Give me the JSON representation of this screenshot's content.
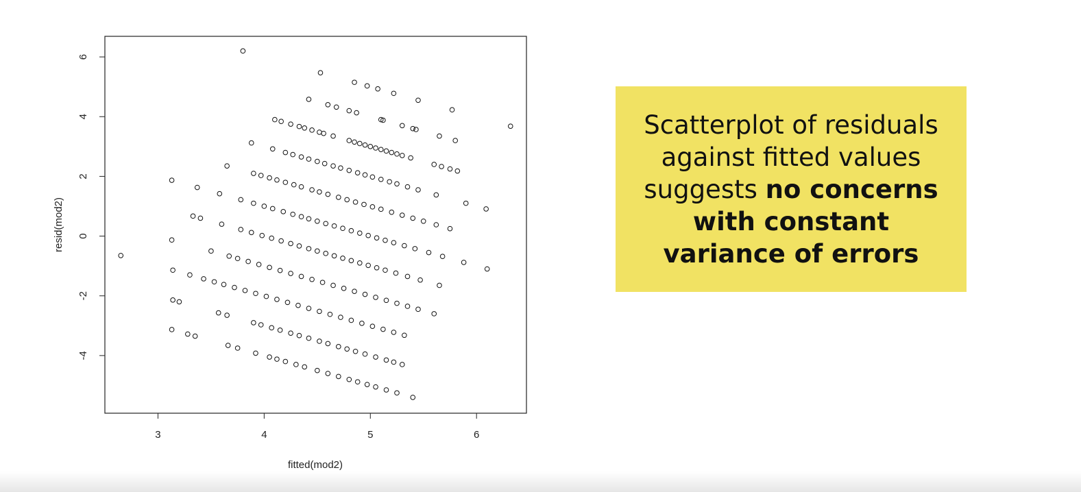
{
  "chart_data": {
    "type": "scatter",
    "xlabel": "fitted(mod2)",
    "ylabel": "resid(mod2)",
    "xlim": [
      2.5,
      6.47
    ],
    "ylim": [
      -5.93,
      6.69
    ],
    "xticks": [
      3,
      4,
      5,
      6
    ],
    "yticks": [
      -4,
      -2,
      0,
      2,
      4,
      6
    ],
    "color": "#111111",
    "x": [
      3.8,
      4.53,
      4.85,
      4.97,
      5.07,
      5.22,
      5.45,
      5.77,
      6.32,
      4.42,
      4.6,
      4.68,
      4.8,
      4.87,
      5.1,
      5.12,
      5.3,
      5.4,
      5.43,
      5.65,
      5.8,
      4.1,
      4.16,
      4.25,
      4.33,
      4.38,
      4.45,
      4.52,
      4.56,
      4.65,
      4.8,
      4.85,
      4.9,
      4.95,
      5.0,
      5.05,
      5.1,
      5.15,
      5.2,
      5.25,
      5.3,
      5.38,
      5.6,
      5.67,
      5.75,
      5.82,
      3.88,
      4.08,
      4.2,
      4.27,
      4.35,
      4.42,
      4.5,
      4.57,
      4.65,
      4.72,
      4.8,
      4.88,
      4.95,
      5.02,
      5.1,
      5.18,
      5.25,
      5.35,
      5.45,
      5.62,
      5.9,
      6.09,
      3.65,
      3.9,
      3.97,
      4.05,
      4.12,
      4.2,
      4.28,
      4.35,
      4.45,
      4.52,
      4.6,
      4.7,
      4.78,
      4.86,
      4.94,
      5.02,
      5.1,
      5.2,
      5.3,
      5.4,
      5.5,
      5.62,
      5.75,
      3.13,
      3.37,
      3.58,
      3.78,
      3.9,
      4.0,
      4.08,
      4.18,
      4.27,
      4.35,
      4.42,
      4.5,
      4.58,
      4.66,
      4.74,
      4.82,
      4.9,
      4.98,
      5.06,
      5.14,
      5.22,
      5.32,
      5.42,
      5.55,
      5.68,
      5.88,
      6.1,
      3.33,
      3.4,
      3.6,
      3.78,
      3.88,
      3.98,
      4.07,
      4.16,
      4.25,
      4.33,
      4.42,
      4.5,
      4.58,
      4.66,
      4.74,
      4.82,
      4.9,
      4.98,
      5.06,
      5.14,
      5.24,
      5.35,
      5.47,
      5.65,
      3.13,
      3.5,
      3.67,
      3.75,
      3.85,
      3.95,
      4.05,
      4.15,
      4.25,
      4.35,
      4.45,
      4.55,
      4.65,
      4.75,
      4.85,
      4.95,
      5.05,
      5.15,
      5.25,
      5.35,
      5.45,
      5.6,
      2.65,
      3.14,
      3.3,
      3.43,
      3.53,
      3.62,
      3.72,
      3.82,
      3.92,
      4.02,
      4.12,
      4.22,
      4.32,
      4.42,
      4.52,
      4.62,
      4.72,
      4.82,
      4.92,
      5.02,
      5.12,
      5.22,
      5.32,
      3.14,
      3.2,
      3.57,
      3.65,
      3.9,
      3.97,
      4.07,
      4.15,
      4.25,
      4.33,
      4.42,
      4.52,
      4.6,
      4.7,
      4.78,
      4.86,
      4.95,
      5.05,
      5.15,
      5.22,
      5.3,
      3.13,
      3.28,
      3.35,
      3.66,
      3.75,
      3.92,
      4.05,
      4.12,
      4.2,
      4.3,
      4.38,
      4.5,
      4.6,
      4.7,
      4.8,
      4.88,
      4.97,
      5.05,
      5.15,
      5.25,
      5.4
    ],
    "values": [
      6.2,
      5.47,
      5.15,
      5.03,
      4.93,
      4.78,
      4.55,
      4.23,
      3.68,
      4.58,
      4.4,
      4.32,
      4.2,
      4.13,
      3.9,
      3.88,
      3.7,
      3.6,
      3.57,
      3.35,
      3.2,
      3.9,
      3.84,
      3.75,
      3.67,
      3.62,
      3.55,
      3.48,
      3.44,
      3.35,
      3.2,
      3.15,
      3.1,
      3.05,
      3.0,
      2.95,
      2.9,
      2.85,
      2.8,
      2.75,
      2.7,
      2.62,
      2.4,
      2.33,
      2.25,
      2.18,
      3.12,
      2.92,
      2.8,
      2.73,
      2.65,
      2.58,
      2.5,
      2.43,
      2.35,
      2.28,
      2.2,
      2.12,
      2.05,
      1.98,
      1.9,
      1.82,
      1.75,
      1.65,
      1.55,
      1.38,
      1.1,
      0.91,
      2.35,
      2.1,
      2.03,
      1.95,
      1.88,
      1.8,
      1.72,
      1.65,
      1.55,
      1.48,
      1.4,
      1.3,
      1.22,
      1.14,
      1.06,
      0.98,
      0.9,
      0.8,
      0.7,
      0.6,
      0.5,
      0.38,
      0.25,
      1.87,
      1.63,
      1.42,
      1.22,
      1.1,
      1.0,
      0.92,
      0.82,
      0.73,
      0.65,
      0.58,
      0.5,
      0.42,
      0.34,
      0.26,
      0.18,
      0.1,
      0.02,
      -0.06,
      -0.14,
      -0.22,
      -0.32,
      -0.42,
      -0.55,
      -0.68,
      -0.88,
      -1.1,
      0.67,
      0.6,
      0.4,
      0.22,
      0.12,
      0.02,
      -0.07,
      -0.16,
      -0.25,
      -0.33,
      -0.42,
      -0.5,
      -0.58,
      -0.66,
      -0.74,
      -0.82,
      -0.9,
      -0.98,
      -1.06,
      -1.14,
      -1.24,
      -1.35,
      -1.47,
      -1.65,
      -0.13,
      -0.5,
      -0.67,
      -0.75,
      -0.85,
      -0.95,
      -1.05,
      -1.15,
      -1.25,
      -1.35,
      -1.45,
      -1.55,
      -1.65,
      -1.75,
      -1.85,
      -1.95,
      -2.05,
      -2.15,
      -2.25,
      -2.35,
      -2.45,
      -2.6,
      -0.65,
      -1.14,
      -1.3,
      -1.43,
      -1.53,
      -1.62,
      -1.72,
      -1.82,
      -1.92,
      -2.02,
      -2.12,
      -2.22,
      -2.32,
      -2.42,
      -2.52,
      -2.62,
      -2.72,
      -2.82,
      -2.92,
      -3.02,
      -3.12,
      -3.22,
      -3.32,
      -2.14,
      -2.2,
      -2.57,
      -2.65,
      -2.9,
      -2.97,
      -3.07,
      -3.15,
      -3.25,
      -3.33,
      -3.42,
      -3.52,
      -3.6,
      -3.7,
      -3.78,
      -3.86,
      -3.95,
      -4.05,
      -4.15,
      -4.22,
      -4.3,
      -3.13,
      -3.28,
      -3.35,
      -3.66,
      -3.75,
      -3.92,
      -4.05,
      -4.12,
      -4.2,
      -4.3,
      -4.38,
      -4.5,
      -4.6,
      -4.7,
      -4.8,
      -4.88,
      -4.97,
      -5.05,
      -5.15,
      -5.25,
      -5.4
    ],
    "annotation_lines": [
      {
        "text": "Scatterplot of residuals"
      },
      {
        "text": "against fitted values"
      },
      {
        "text": "suggests ",
        "bold_text": "no concerns"
      },
      {
        "bold_text": "with constant"
      },
      {
        "bold_text": "variance of errors"
      }
    ]
  }
}
